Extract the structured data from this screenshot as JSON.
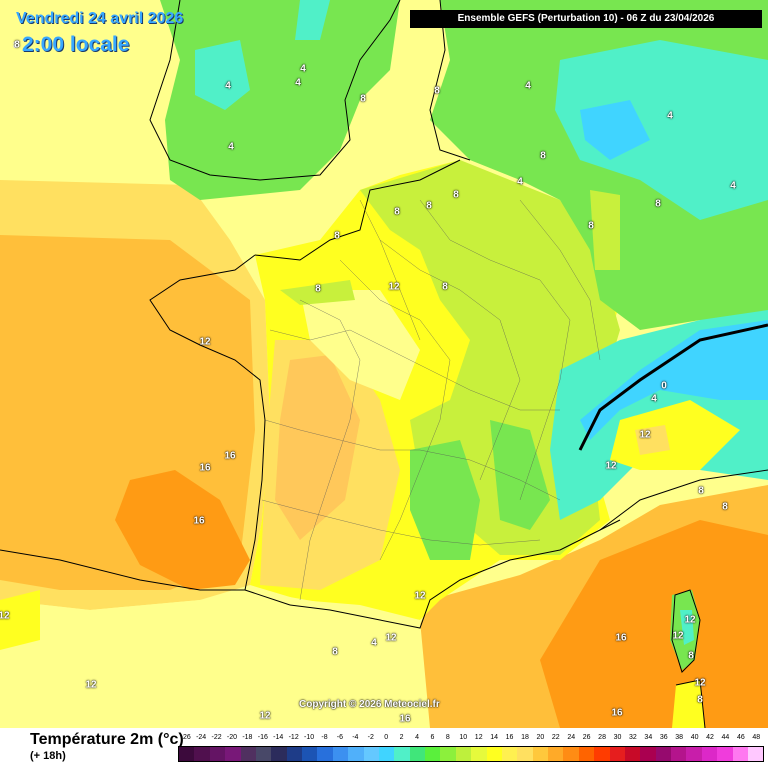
{
  "header": {
    "date": "Vendredi 24 avril 2026",
    "time": "2:00 locale",
    "run": "Ensemble GEFS  (Perturbation 10)  -  06 Z du 23/04/2026",
    "corner_value": "8"
  },
  "map": {
    "copyright": "Copyright © 2026 Meteociel.fr",
    "zero_isotherm_color": "#000000",
    "fill_colors": {
      "sea_pale": "#ffff8c",
      "warm_yellow": "#ffe060",
      "orange": "#ffbf3a",
      "dark_orange": "#ff9b14",
      "yellow": "#ffff20",
      "lime": "#c8f03c",
      "green": "#78e650",
      "cyan": "#50f0c8",
      "light_blue": "#40d4ff"
    },
    "labels": [
      {
        "text": "4"
      },
      {
        "text": "4"
      },
      {
        "text": "4"
      },
      {
        "text": "8"
      },
      {
        "text": "4"
      },
      {
        "text": "8"
      },
      {
        "text": "4"
      },
      {
        "text": "4"
      },
      {
        "text": "8"
      },
      {
        "text": "4"
      },
      {
        "text": "4"
      },
      {
        "text": "8"
      },
      {
        "text": "8"
      },
      {
        "text": "8"
      },
      {
        "text": "8"
      },
      {
        "text": "8"
      },
      {
        "text": "8"
      },
      {
        "text": "12"
      },
      {
        "text": "8"
      },
      {
        "text": "8"
      },
      {
        "text": "12"
      },
      {
        "text": "0"
      },
      {
        "text": "4"
      },
      {
        "text": "12"
      },
      {
        "text": "12"
      },
      {
        "text": "16"
      },
      {
        "text": "16"
      },
      {
        "text": "16"
      },
      {
        "text": "8"
      },
      {
        "text": "8"
      },
      {
        "text": "4"
      },
      {
        "text": "8"
      },
      {
        "text": "12"
      },
      {
        "text": "12"
      },
      {
        "text": "12"
      },
      {
        "text": "16"
      },
      {
        "text": "12"
      },
      {
        "text": "12"
      },
      {
        "text": "8"
      },
      {
        "text": "12"
      },
      {
        "text": "12"
      },
      {
        "text": "16"
      },
      {
        "text": "16"
      },
      {
        "text": "8"
      },
      {
        "text": "12"
      },
      {
        "text": "8"
      }
    ]
  },
  "legend": {
    "title": "Température 2m (°c)",
    "subtitle": "(+ 18h)",
    "ticks": [
      "-26",
      "-24",
      "-22",
      "-20",
      "-18",
      "-16",
      "-14",
      "-12",
      "-10",
      "-8",
      "-6",
      "-4",
      "-2",
      "0",
      "2",
      "4",
      "6",
      "8",
      "10",
      "12",
      "14",
      "16",
      "18",
      "20",
      "22",
      "24",
      "26",
      "28",
      "30",
      "32",
      "34",
      "36",
      "38",
      "40",
      "42",
      "44",
      "46",
      "48"
    ],
    "colors": [
      "#3c0a3c",
      "#50104e",
      "#641464",
      "#781878",
      "#503060",
      "#484868",
      "#2c2c5c",
      "#1e3c88",
      "#1c54b4",
      "#2870dc",
      "#3c90f0",
      "#50b0fa",
      "#64c8ff",
      "#40d4ff",
      "#50f0c8",
      "#40e67a",
      "#5af03c",
      "#8cf03c",
      "#bef03c",
      "#e6fa3c",
      "#ffff20",
      "#fff050",
      "#ffe060",
      "#ffc83c",
      "#ffaa28",
      "#ff8c14",
      "#ff6400",
      "#ff3c00",
      "#e61e1e",
      "#c80a28",
      "#aa0050",
      "#960a6e",
      "#b4148c",
      "#c81eaa",
      "#dc28c8",
      "#f03cdc",
      "#ff78f0",
      "#ffc8ff"
    ]
  }
}
